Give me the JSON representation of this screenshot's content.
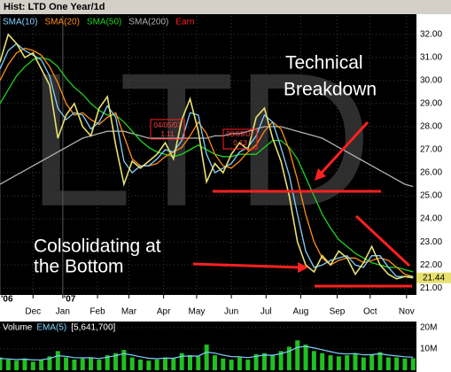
{
  "chart_data": {
    "type": "line",
    "title": "Hist: LTD One Year/1d",
    "watermark": "LTD",
    "annotations": [
      "Technical",
      "Breakdown",
      "Colsolidating at",
      "the Bottom"
    ],
    "earnings": [
      {
        "date": "04/05/07",
        "value": "1.11"
      },
      {
        "date": "08/09/07",
        "value": "0.13"
      }
    ],
    "earnings_label": "Earn",
    "earnings_color": "#ff2020",
    "x": [
      0,
      5,
      10,
      15,
      20,
      25,
      30,
      35,
      40,
      45,
      50,
      55,
      60,
      65,
      70,
      75,
      80,
      85,
      90,
      95,
      100,
      105,
      110,
      115,
      120,
      125,
      130,
      135,
      140,
      145,
      150,
      155,
      160,
      165,
      170,
      175,
      180,
      185,
      190,
      195,
      200,
      205,
      210,
      215,
      220,
      225,
      230,
      235,
      240,
      245,
      250
    ],
    "xlim": [
      0,
      252
    ],
    "xticks": [
      {
        "value": 20,
        "label": "Dec"
      },
      {
        "value": 38,
        "label": "Jan"
      },
      {
        "value": 59,
        "label": "Feb"
      },
      {
        "value": 78,
        "label": "Mar"
      },
      {
        "value": 99,
        "label": "Apr"
      },
      {
        "value": 119,
        "label": "May"
      },
      {
        "value": 140,
        "label": "Jun"
      },
      {
        "value": 161,
        "label": "Jul"
      },
      {
        "value": 182,
        "label": "Aug"
      },
      {
        "value": 204,
        "label": "Sep"
      },
      {
        "value": 224,
        "label": "Oct"
      },
      {
        "value": 246,
        "label": "Nov"
      }
    ],
    "year_ticks": [
      {
        "value": 0,
        "label": "'06"
      },
      {
        "value": 38,
        "label": "'07"
      }
    ],
    "ylim": [
      20.7,
      32.8
    ],
    "yticks": [
      {
        "value": 21,
        "label": "21.00"
      },
      {
        "value": 22,
        "label": "22.00"
      },
      {
        "value": 23,
        "label": "23.00"
      },
      {
        "value": 24,
        "label": "24.00"
      },
      {
        "value": 25,
        "label": "25.00"
      },
      {
        "value": 26,
        "label": "26.00"
      },
      {
        "value": 27,
        "label": "27.00"
      },
      {
        "value": 28,
        "label": "28.00"
      },
      {
        "value": 29,
        "label": "29.00"
      },
      {
        "value": 30,
        "label": "30.00"
      },
      {
        "value": 31,
        "label": "31.00"
      },
      {
        "value": 32,
        "label": "32.00"
      }
    ],
    "grid": true,
    "series": [
      {
        "name": "LTD",
        "color": "#e8e070",
        "values": [
          30.8,
          32.0,
          31.6,
          31.0,
          31.2,
          30.5,
          29.8,
          27.5,
          28.5,
          29.0,
          28.0,
          27.6,
          28.8,
          29.3,
          27.2,
          25.5,
          26.5,
          26.2,
          26.5,
          26.8,
          27.3,
          26.6,
          28.3,
          29.2,
          27.8,
          25.6,
          26.4,
          26.0,
          26.8,
          27.3,
          27.0,
          28.4,
          28.8,
          27.5,
          26.5,
          25.0,
          23.0,
          22.0,
          21.7,
          22.4,
          22.0,
          22.6,
          22.3,
          21.6,
          22.1,
          22.8,
          22.0,
          21.6,
          21.4,
          21.5,
          21.44
        ]
      },
      {
        "name": "SMA(10)",
        "color": "#80d0ff",
        "values": [
          30.5,
          31.3,
          31.6,
          31.3,
          31.1,
          30.9,
          30.2,
          28.8,
          28.3,
          28.6,
          28.5,
          27.9,
          28.2,
          28.9,
          28.4,
          26.5,
          26.0,
          26.3,
          26.3,
          26.6,
          27.0,
          26.9,
          27.4,
          28.6,
          28.5,
          26.8,
          26.0,
          26.2,
          26.4,
          26.9,
          27.1,
          27.6,
          28.5,
          28.2,
          27.1,
          25.9,
          24.2,
          22.6,
          21.9,
          22.0,
          22.2,
          22.3,
          22.4,
          22.0,
          21.9,
          22.4,
          22.4,
          21.9,
          21.5,
          21.5,
          21.5
        ]
      },
      {
        "name": "SMA(20)",
        "color": "#ff8c1a",
        "values": [
          30.0,
          30.7,
          31.2,
          31.4,
          31.3,
          31.1,
          30.6,
          29.9,
          29.0,
          28.5,
          28.6,
          28.3,
          28.1,
          28.4,
          28.6,
          27.6,
          26.6,
          26.3,
          26.3,
          26.4,
          26.7,
          26.9,
          27.1,
          27.6,
          28.2,
          27.7,
          26.8,
          26.3,
          26.2,
          26.5,
          26.9,
          27.2,
          27.8,
          28.2,
          27.9,
          27.0,
          25.7,
          24.2,
          23.0,
          22.3,
          22.0,
          22.2,
          22.3,
          22.3,
          22.1,
          22.2,
          22.3,
          22.2,
          21.9,
          21.6,
          21.5
        ]
      },
      {
        "name": "SMA(50)",
        "color": "#20d020",
        "values": [
          29.0,
          29.6,
          30.2,
          30.6,
          30.9,
          31.0,
          30.9,
          30.6,
          30.1,
          29.7,
          29.4,
          29.0,
          28.7,
          28.5,
          28.5,
          28.2,
          27.8,
          27.4,
          27.1,
          26.9,
          26.8,
          26.7,
          26.8,
          27.0,
          27.2,
          27.0,
          26.8,
          26.7,
          26.7,
          26.8,
          26.8,
          26.8,
          27.1,
          27.4,
          27.4,
          27.1,
          26.6,
          25.8,
          25.0,
          24.2,
          23.6,
          23.1,
          22.8,
          22.5,
          22.3,
          22.1,
          22.0,
          21.9,
          21.9,
          21.8,
          21.7
        ]
      },
      {
        "name": "SMA(200)",
        "color": "#b0b0b0",
        "values": [
          25.5,
          25.7,
          25.9,
          26.1,
          26.3,
          26.5,
          26.7,
          26.9,
          27.1,
          27.3,
          27.5,
          27.6,
          27.7,
          27.8,
          27.8,
          27.8,
          27.7,
          27.6,
          27.5,
          27.5,
          27.5,
          27.5,
          27.5,
          27.5,
          27.5,
          27.5,
          27.6,
          27.6,
          27.7,
          27.7,
          27.8,
          27.9,
          28.0,
          28.0,
          28.0,
          27.9,
          27.8,
          27.7,
          27.6,
          27.5,
          27.3,
          27.1,
          26.9,
          26.7,
          26.5,
          26.3,
          26.1,
          25.9,
          25.7,
          25.5,
          25.4
        ]
      }
    ],
    "volume": {
      "name": "Volume",
      "ema_name": "EMA(5)",
      "last_label": "[5,641,700]",
      "color": "#20c020",
      "ema_color": "#80d0ff",
      "ylim": [
        0,
        22000000
      ],
      "yticks": [
        {
          "value": 10000000,
          "label": "10M"
        },
        {
          "value": 20000000,
          "label": "20M"
        }
      ],
      "values": [
        6000000,
        5000000,
        4500000,
        5500000,
        4000000,
        5000000,
        6500000,
        9000000,
        6000000,
        5000000,
        5500000,
        6000000,
        5000000,
        7000000,
        8000000,
        9500000,
        6000000,
        5000000,
        4500000,
        5000000,
        6000000,
        5500000,
        8000000,
        7000000,
        6500000,
        12000000,
        7000000,
        5500000,
        5000000,
        6000000,
        5000000,
        7500000,
        8000000,
        7000000,
        9000000,
        11000000,
        14000000,
        12000000,
        9000000,
        8000000,
        7000000,
        6500000,
        7000000,
        8000000,
        6000000,
        7500000,
        8500000,
        6000000,
        6000000,
        5500000,
        5641700
      ],
      "ema": [
        5500000,
        5300000,
        5000000,
        5200000,
        4800000,
        4900000,
        5500000,
        6800000,
        6500000,
        5900000,
        5800000,
        5900000,
        5500000,
        6100000,
        6800000,
        7800000,
        7100000,
        6300000,
        5600000,
        5400000,
        5700000,
        5600000,
        6500000,
        6700000,
        6600000,
        8500000,
        8000000,
        7100000,
        6400000,
        6300000,
        5900000,
        6500000,
        7100000,
        7000000,
        7700000,
        8900000,
        10700000,
        11200000,
        10400000,
        9600000,
        8700000,
        7900000,
        7600000,
        7800000,
        7200000,
        7300000,
        7700000,
        7100000,
        6700000,
        6300000,
        6100000
      ]
    }
  }
}
